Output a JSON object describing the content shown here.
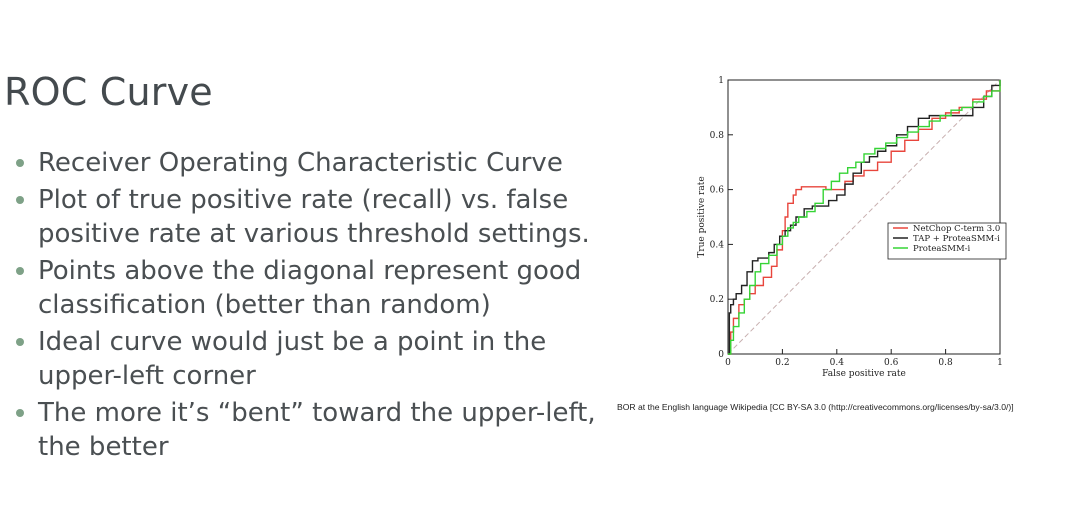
{
  "slide": {
    "title": "ROC Curve",
    "bullets": [
      "Receiver Operating Characteristic Curve",
      "Plot of true positive rate (recall) vs. false positive rate at various threshold settings.",
      "Points above the diagonal represent good classification (better than random)",
      "Ideal curve would just be a point in the upper-left corner",
      "The more it’s “bent” toward the upper-left, the better"
    ],
    "attribution": "BOR at the English language Wikipedia [CC BY-SA 3.0 (http://creativecommons.org/licenses/by-sa/3.0/)]"
  },
  "colors": {
    "bullet": "#7ea187",
    "text": "#4a4f52",
    "netchop": "#e8453c",
    "tap": "#222222",
    "protea": "#35d435",
    "diagonal": "#c8b0b0"
  },
  "chart_data": {
    "type": "line",
    "xlabel": "False positive rate",
    "ylabel": "True positive rate",
    "xlim": [
      0,
      1
    ],
    "ylim": [
      0,
      1
    ],
    "x_ticks": [
      "0",
      "0.2",
      "0.4",
      "0.6",
      "0.8",
      "1"
    ],
    "y_ticks": [
      "0",
      "0.2",
      "0.4",
      "0.6",
      "0.8",
      "1"
    ],
    "legend_position": "center-right",
    "diagonal": true,
    "series": [
      {
        "name": "NetChop C-term 3.0",
        "color": "#e8453c",
        "x": [
          0,
          0.01,
          0.02,
          0.04,
          0.06,
          0.08,
          0.1,
          0.13,
          0.16,
          0.18,
          0.2,
          0.21,
          0.22,
          0.24,
          0.25,
          0.27,
          0.3,
          0.33,
          0.36,
          0.4,
          0.43,
          0.46,
          0.5,
          0.55,
          0.6,
          0.65,
          0.7,
          0.75,
          0.8,
          0.85,
          0.9,
          0.95,
          1.0
        ],
        "y": [
          0,
          0.08,
          0.13,
          0.18,
          0.2,
          0.22,
          0.25,
          0.28,
          0.32,
          0.38,
          0.45,
          0.5,
          0.55,
          0.58,
          0.6,
          0.61,
          0.61,
          0.61,
          0.6,
          0.6,
          0.63,
          0.65,
          0.67,
          0.7,
          0.74,
          0.78,
          0.82,
          0.86,
          0.88,
          0.9,
          0.93,
          0.96,
          1.0
        ]
      },
      {
        "name": "TAP + ProteaSMM-i",
        "color": "#222222",
        "x": [
          0,
          0.005,
          0.01,
          0.02,
          0.03,
          0.05,
          0.07,
          0.09,
          0.11,
          0.13,
          0.15,
          0.17,
          0.19,
          0.21,
          0.23,
          0.25,
          0.28,
          0.31,
          0.34,
          0.37,
          0.4,
          0.43,
          0.46,
          0.49,
          0.52,
          0.55,
          0.58,
          0.62,
          0.66,
          0.7,
          0.74,
          0.78,
          0.82,
          0.86,
          0.9,
          0.94,
          0.97,
          1.0
        ],
        "y": [
          0,
          0.15,
          0.18,
          0.2,
          0.22,
          0.25,
          0.3,
          0.34,
          0.35,
          0.35,
          0.37,
          0.4,
          0.43,
          0.45,
          0.47,
          0.5,
          0.53,
          0.54,
          0.54,
          0.56,
          0.58,
          0.62,
          0.66,
          0.7,
          0.72,
          0.74,
          0.76,
          0.8,
          0.83,
          0.86,
          0.87,
          0.87,
          0.87,
          0.87,
          0.9,
          0.94,
          0.98,
          1.0
        ]
      },
      {
        "name": "ProteaSMM-i",
        "color": "#35d435",
        "x": [
          0,
          0.01,
          0.02,
          0.04,
          0.06,
          0.08,
          0.1,
          0.12,
          0.15,
          0.18,
          0.2,
          0.22,
          0.24,
          0.26,
          0.29,
          0.32,
          0.35,
          0.38,
          0.41,
          0.44,
          0.47,
          0.5,
          0.54,
          0.58,
          0.62,
          0.66,
          0.7,
          0.74,
          0.78,
          0.82,
          0.86,
          0.9,
          0.94,
          0.97,
          1.0
        ],
        "y": [
          0,
          0.05,
          0.1,
          0.15,
          0.2,
          0.25,
          0.3,
          0.33,
          0.36,
          0.4,
          0.43,
          0.46,
          0.48,
          0.5,
          0.52,
          0.55,
          0.6,
          0.63,
          0.66,
          0.68,
          0.7,
          0.73,
          0.75,
          0.77,
          0.79,
          0.81,
          0.83,
          0.85,
          0.87,
          0.89,
          0.9,
          0.92,
          0.94,
          0.96,
          1.0
        ]
      }
    ]
  }
}
